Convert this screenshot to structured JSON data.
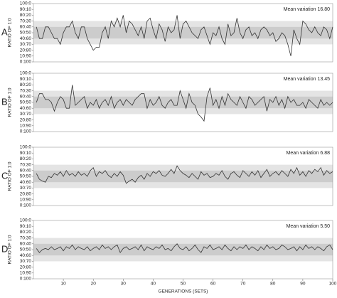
{
  "chart_data": [
    {
      "type": "line",
      "panel_label": "A",
      "annotation": "Mean variation 16.80",
      "ylabel": "RATIO OF 1:0",
      "x": [
        1,
        2,
        3,
        4,
        5,
        6,
        7,
        8,
        9,
        10,
        11,
        12,
        13,
        14,
        15,
        16,
        17,
        18,
        19,
        20,
        21,
        22,
        23,
        24,
        25,
        26,
        27,
        28,
        29,
        30,
        31,
        32,
        33,
        34,
        35,
        36,
        37,
        38,
        39,
        40,
        41,
        42,
        43,
        44,
        45,
        46,
        47,
        48,
        49,
        50,
        51,
        52,
        53,
        54,
        55,
        56,
        57,
        58,
        59,
        60,
        61,
        62,
        63,
        64,
        65,
        66,
        67,
        68,
        69,
        70,
        71,
        72,
        73,
        74,
        75,
        76,
        77,
        78,
        79,
        80,
        81,
        82,
        83,
        84,
        85,
        86,
        87,
        88,
        89,
        90,
        91,
        92,
        93,
        94,
        95,
        96,
        97,
        98,
        99,
        100
      ],
      "values": [
        60,
        40,
        40,
        60,
        60,
        50,
        40,
        40,
        30,
        50,
        60,
        60,
        70,
        50,
        40,
        60,
        60,
        40,
        30,
        20,
        25,
        25,
        50,
        60,
        40,
        70,
        60,
        75,
        60,
        80,
        50,
        70,
        65,
        55,
        45,
        60,
        40,
        70,
        75,
        55,
        40,
        65,
        55,
        35,
        60,
        50,
        55,
        80,
        40,
        65,
        70,
        60,
        50,
        45,
        40,
        55,
        60,
        45,
        30,
        50,
        45,
        60,
        40,
        30,
        65,
        45,
        50,
        75,
        50,
        40,
        55,
        60,
        45,
        50,
        40,
        55,
        60,
        55,
        45,
        50,
        35,
        40,
        50,
        45,
        30,
        10,
        55,
        40,
        30,
        70,
        65,
        55,
        50,
        60,
        50,
        45,
        60,
        55,
        40,
        60
      ],
      "color": "#333333",
      "xlim": [
        0,
        100
      ],
      "ylim": [
        0,
        100
      ],
      "yticks": [
        {
          "value": 100,
          "label": "100:0"
        },
        {
          "value": 90,
          "label": "90:10"
        },
        {
          "value": 80,
          "label": "80:20"
        },
        {
          "value": 70,
          "label": "70:30"
        },
        {
          "value": 60,
          "label": "60:40"
        },
        {
          "value": 50,
          "label": "50:50"
        },
        {
          "value": 40,
          "label": "40:60"
        },
        {
          "value": 30,
          "label": "30:70"
        },
        {
          "value": 20,
          "label": "20:80"
        },
        {
          "value": 10,
          "label": "10:90"
        },
        {
          "value": 0,
          "label": "0:100"
        }
      ],
      "bands": [
        {
          "from": 30,
          "to": 70,
          "color": "#e4e4e4"
        },
        {
          "from": 40,
          "to": 60,
          "color": "#cccccc"
        }
      ]
    },
    {
      "type": "line",
      "panel_label": "B",
      "annotation": "Mean variation 13.45",
      "ylabel": "RATIO OF 1:0",
      "x": [
        1,
        2,
        3,
        4,
        5,
        6,
        7,
        8,
        9,
        10,
        11,
        12,
        13,
        14,
        15,
        16,
        17,
        18,
        19,
        20,
        21,
        22,
        23,
        24,
        25,
        26,
        27,
        28,
        29,
        30,
        31,
        32,
        33,
        34,
        35,
        36,
        37,
        38,
        39,
        40,
        41,
        42,
        43,
        44,
        45,
        46,
        47,
        48,
        49,
        50,
        51,
        52,
        53,
        54,
        55,
        56,
        57,
        58,
        59,
        60,
        61,
        62,
        63,
        64,
        65,
        66,
        67,
        68,
        69,
        70,
        71,
        72,
        73,
        74,
        75,
        76,
        77,
        78,
        79,
        80,
        81,
        82,
        83,
        84,
        85,
        86,
        87,
        88,
        89,
        90,
        91,
        92,
        93,
        94,
        95,
        96,
        97,
        98,
        99,
        100
      ],
      "values": [
        50,
        65,
        65,
        55,
        55,
        50,
        35,
        50,
        60,
        55,
        40,
        40,
        80,
        45,
        50,
        55,
        60,
        40,
        50,
        45,
        55,
        40,
        50,
        55,
        45,
        60,
        40,
        50,
        55,
        45,
        55,
        50,
        45,
        55,
        60,
        65,
        65,
        40,
        55,
        45,
        50,
        60,
        45,
        40,
        50,
        55,
        45,
        45,
        70,
        55,
        40,
        65,
        50,
        45,
        30,
        25,
        18,
        60,
        75,
        45,
        55,
        40,
        60,
        45,
        65,
        55,
        50,
        45,
        60,
        50,
        40,
        60,
        55,
        45,
        50,
        55,
        60,
        35,
        55,
        50,
        60,
        45,
        55,
        40,
        60,
        50,
        55,
        45,
        45,
        50,
        40,
        55,
        50,
        45,
        40,
        55,
        45,
        50,
        45,
        50
      ],
      "color": "#333333",
      "xlim": [
        0,
        100
      ],
      "ylim": [
        0,
        100
      ],
      "yticks": [
        {
          "value": 100,
          "label": "100:0"
        },
        {
          "value": 90,
          "label": "90:10"
        },
        {
          "value": 80,
          "label": "80:20"
        },
        {
          "value": 70,
          "label": "70:30"
        },
        {
          "value": 60,
          "label": "60:40"
        },
        {
          "value": 50,
          "label": "50:50"
        },
        {
          "value": 40,
          "label": "40:60"
        },
        {
          "value": 30,
          "label": "30:70"
        },
        {
          "value": 20,
          "label": "20:80"
        },
        {
          "value": 10,
          "label": "10:90"
        },
        {
          "value": 0,
          "label": "0:100"
        }
      ],
      "bands": [
        {
          "from": 30,
          "to": 70,
          "color": "#e4e4e4"
        },
        {
          "from": 40,
          "to": 60,
          "color": "#cccccc"
        }
      ]
    },
    {
      "type": "line",
      "panel_label": "C",
      "annotation": "Mean variation 6.88",
      "ylabel": "RATIO OF 1:0",
      "x": [
        1,
        2,
        3,
        4,
        5,
        6,
        7,
        8,
        9,
        10,
        11,
        12,
        13,
        14,
        15,
        16,
        17,
        18,
        19,
        20,
        21,
        22,
        23,
        24,
        25,
        26,
        27,
        28,
        29,
        30,
        31,
        32,
        33,
        34,
        35,
        36,
        37,
        38,
        39,
        40,
        41,
        42,
        43,
        44,
        45,
        46,
        47,
        48,
        49,
        50,
        51,
        52,
        53,
        54,
        55,
        56,
        57,
        58,
        59,
        60,
        61,
        62,
        63,
        64,
        65,
        66,
        67,
        68,
        69,
        70,
        71,
        72,
        73,
        74,
        75,
        76,
        77,
        78,
        79,
        80,
        81,
        82,
        83,
        84,
        85,
        86,
        87,
        88,
        89,
        90,
        91,
        92,
        93,
        94,
        95,
        96,
        97,
        98,
        99,
        100
      ],
      "values": [
        55,
        45,
        42,
        40,
        50,
        48,
        55,
        52,
        58,
        50,
        60,
        52,
        55,
        50,
        58,
        52,
        55,
        50,
        60,
        65,
        50,
        58,
        55,
        60,
        52,
        48,
        55,
        50,
        58,
        52,
        38,
        42,
        45,
        40,
        48,
        52,
        45,
        55,
        50,
        58,
        55,
        60,
        52,
        50,
        55,
        62,
        55,
        68,
        60,
        55,
        52,
        48,
        55,
        50,
        45,
        58,
        52,
        55,
        48,
        50,
        55,
        52,
        60,
        50,
        45,
        55,
        58,
        52,
        48,
        60,
        55,
        50,
        58,
        52,
        60,
        48,
        55,
        62,
        50,
        55,
        58,
        52,
        60,
        55,
        50,
        62,
        55,
        65,
        52,
        58,
        50,
        60,
        55,
        62,
        58,
        65,
        52,
        60,
        55,
        58
      ],
      "color": "#333333",
      "xlim": [
        0,
        100
      ],
      "ylim": [
        0,
        100
      ],
      "yticks": [
        {
          "value": 100,
          "label": "100:0"
        },
        {
          "value": 90,
          "label": "90:10"
        },
        {
          "value": 80,
          "label": "80:20"
        },
        {
          "value": 70,
          "label": "70:30"
        },
        {
          "value": 60,
          "label": "60:40"
        },
        {
          "value": 50,
          "label": "50:50"
        },
        {
          "value": 40,
          "label": "40:60"
        },
        {
          "value": 30,
          "label": "30:70"
        },
        {
          "value": 20,
          "label": "20:80"
        },
        {
          "value": 10,
          "label": "10:90"
        },
        {
          "value": 0,
          "label": "0:100"
        }
      ],
      "bands": [
        {
          "from": 30,
          "to": 70,
          "color": "#e4e4e4"
        },
        {
          "from": 40,
          "to": 60,
          "color": "#cccccc"
        }
      ]
    },
    {
      "type": "line",
      "panel_label": "D",
      "annotation": "Mean variation 5.50",
      "ylabel": "RATIO OF 1:0",
      "xlabel": "GENERATIONS (SETS)",
      "x": [
        1,
        2,
        3,
        4,
        5,
        6,
        7,
        8,
        9,
        10,
        11,
        12,
        13,
        14,
        15,
        16,
        17,
        18,
        19,
        20,
        21,
        22,
        23,
        24,
        25,
        26,
        27,
        28,
        29,
        30,
        31,
        32,
        33,
        34,
        35,
        36,
        37,
        38,
        39,
        40,
        41,
        42,
        43,
        44,
        45,
        46,
        47,
        48,
        49,
        50,
        51,
        52,
        53,
        54,
        55,
        56,
        57,
        58,
        59,
        60,
        61,
        62,
        63,
        64,
        65,
        66,
        67,
        68,
        69,
        70,
        71,
        72,
        73,
        74,
        75,
        76,
        77,
        78,
        79,
        80,
        81,
        82,
        83,
        84,
        85,
        86,
        87,
        88,
        89,
        90,
        91,
        92,
        93,
        94,
        95,
        96,
        97,
        98,
        99,
        100
      ],
      "values": [
        52,
        45,
        50,
        52,
        50,
        55,
        50,
        52,
        55,
        48,
        55,
        52,
        58,
        50,
        55,
        52,
        50,
        55,
        48,
        52,
        55,
        50,
        58,
        52,
        55,
        50,
        55,
        58,
        45,
        52,
        55,
        50,
        52,
        55,
        50,
        58,
        48,
        55,
        52,
        50,
        55,
        52,
        58,
        50,
        52,
        48,
        55,
        60,
        52,
        50,
        55,
        48,
        52,
        58,
        50,
        45,
        55,
        52,
        58,
        50,
        52,
        55,
        50,
        58,
        52,
        48,
        55,
        50,
        55,
        52,
        58,
        50,
        55,
        52,
        48,
        55,
        50,
        58,
        52,
        55,
        50,
        52,
        58,
        55,
        50,
        52,
        55,
        48,
        55,
        50,
        58,
        52,
        55,
        50,
        55,
        52,
        48,
        55,
        58,
        50
      ],
      "color": "#333333",
      "xlim": [
        0,
        100
      ],
      "ylim": [
        0,
        100
      ],
      "xticks": [
        10,
        20,
        30,
        40,
        50,
        60,
        70,
        80,
        90,
        100
      ],
      "yticks": [
        {
          "value": 100,
          "label": "100:0"
        },
        {
          "value": 90,
          "label": "90:10"
        },
        {
          "value": 80,
          "label": "80:20"
        },
        {
          "value": 70,
          "label": "70:30"
        },
        {
          "value": 60,
          "label": "60:40"
        },
        {
          "value": 50,
          "label": "50:50"
        },
        {
          "value": 40,
          "label": "40:60"
        },
        {
          "value": 30,
          "label": "30:70"
        },
        {
          "value": 20,
          "label": "20:80"
        },
        {
          "value": 10,
          "label": "10:90"
        },
        {
          "value": 0,
          "label": "0:100"
        }
      ],
      "bands": [
        {
          "from": 30,
          "to": 70,
          "color": "#e4e4e4"
        },
        {
          "from": 40,
          "to": 60,
          "color": "#cccccc"
        }
      ]
    }
  ]
}
